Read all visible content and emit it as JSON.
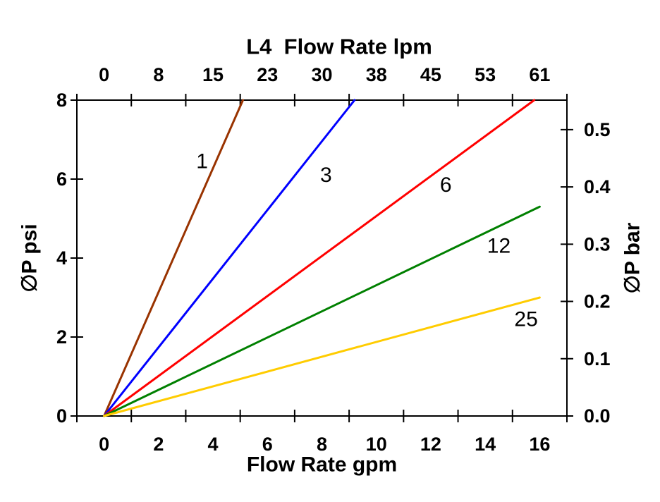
{
  "page": {
    "background_color": "#ffffff",
    "axis_color": "#000000",
    "text_color": "#000000"
  },
  "chart_data": {
    "type": "line",
    "title": "L4  Flow Rate lpm",
    "xlabel": "Flow Rate gpm",
    "ylabel": "∅P psi",
    "ylabel_right": "∅P bar",
    "x_axis_bottom": {
      "unit": "gpm",
      "tick_labels": [
        "0",
        "2",
        "4",
        "6",
        "8",
        "10",
        "12",
        "14",
        "16"
      ],
      "tick_values": [
        0,
        2,
        4,
        6,
        8,
        10,
        12,
        14,
        16
      ],
      "range": [
        0,
        17
      ],
      "style": "category-ticks-between-labels"
    },
    "x_axis_top": {
      "unit": "lpm",
      "tick_labels": [
        "0",
        "8",
        "15",
        "23",
        "30",
        "38",
        "45",
        "53",
        "61"
      ],
      "tick_values": [
        0,
        8,
        15,
        23,
        30,
        38,
        45,
        53,
        61
      ]
    },
    "y_axis_left": {
      "unit": "psi",
      "tick_labels": [
        "0",
        "2",
        "4",
        "6",
        "8"
      ],
      "tick_values": [
        0,
        2,
        4,
        6,
        8
      ],
      "range": [
        0,
        8
      ]
    },
    "y_axis_right": {
      "unit": "bar",
      "tick_labels": [
        "0.0",
        "0.1",
        "0.2",
        "0.3",
        "0.4",
        "0.5"
      ],
      "tick_values": [
        0.0,
        0.1,
        0.2,
        0.3,
        0.4,
        0.5
      ]
    },
    "grid": false,
    "legend_position": "inline-labels",
    "series": [
      {
        "name": "1",
        "color": "#993300",
        "points_gpm_psi": [
          [
            0,
            0
          ],
          [
            5.1,
            8.0
          ]
        ],
        "label_pos_gpm_psi": [
          3.6,
          6.45
        ]
      },
      {
        "name": "3",
        "color": "#0000FF",
        "points_gpm_psi": [
          [
            0,
            0
          ],
          [
            9.2,
            8.0
          ]
        ],
        "label_pos_gpm_psi": [
          8.15,
          6.1
        ]
      },
      {
        "name": "6",
        "color": "#FF0000",
        "points_gpm_psi": [
          [
            0,
            0
          ],
          [
            15.8,
            8.0
          ]
        ],
        "label_pos_gpm_psi": [
          12.55,
          5.85
        ]
      },
      {
        "name": "12",
        "color": "#008000",
        "points_gpm_psi": [
          [
            0,
            0
          ],
          [
            16.0,
            5.3
          ]
        ],
        "label_pos_gpm_psi": [
          14.5,
          4.3
        ]
      },
      {
        "name": "25",
        "color": "#FFCC00",
        "points_gpm_psi": [
          [
            0,
            0
          ],
          [
            16.0,
            3.0
          ]
        ],
        "label_pos_gpm_psi": [
          15.5,
          2.45
        ]
      }
    ]
  }
}
